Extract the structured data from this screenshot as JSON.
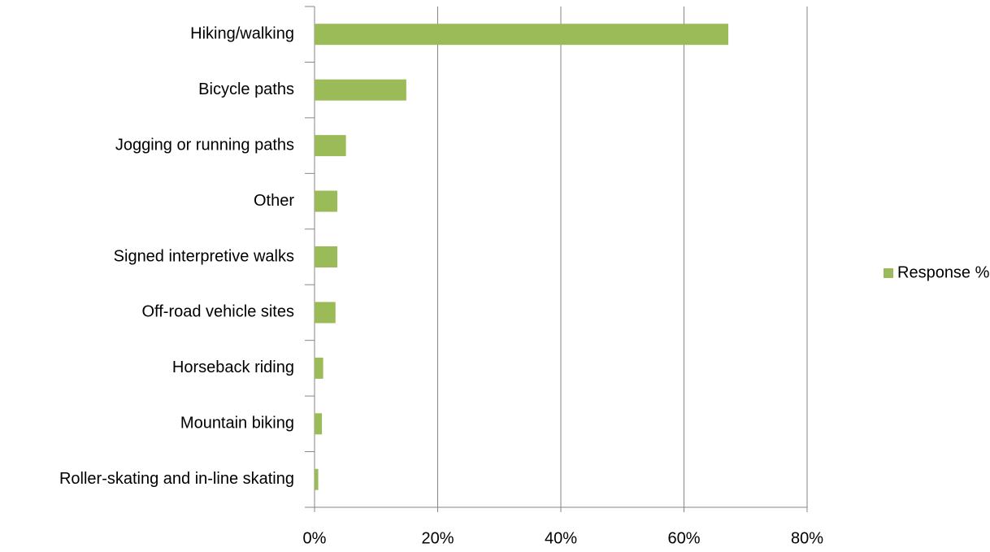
{
  "chart_data": {
    "type": "bar",
    "orientation": "horizontal",
    "categories": [
      "Hiking/walking",
      "Bicycle paths",
      "Jogging or running paths",
      "Other",
      "Signed interpretive walks",
      "Off-road vehicle sites",
      "Horseback riding",
      "Mountain biking",
      "Roller-skating and in-line skating"
    ],
    "series": [
      {
        "name": "Response %",
        "color": "#9bbb59",
        "values": [
          67.2,
          14.9,
          5.1,
          3.7,
          3.7,
          3.4,
          1.4,
          1.2,
          0.6
        ]
      }
    ],
    "xlim": [
      0,
      80
    ],
    "xticks": [
      {
        "value": 0,
        "label": "0%"
      },
      {
        "value": 20,
        "label": "20%"
      },
      {
        "value": 40,
        "label": "40%"
      },
      {
        "value": 60,
        "label": "60%"
      },
      {
        "value": 80,
        "label": "80%"
      }
    ],
    "grid": true,
    "legend": "right"
  }
}
